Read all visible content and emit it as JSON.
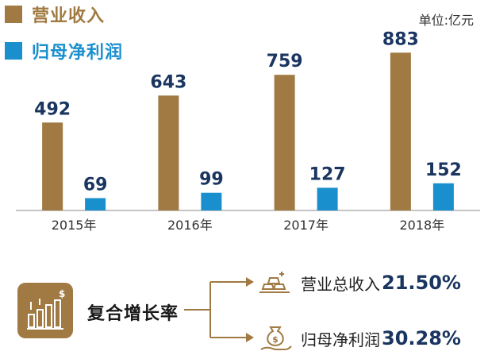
{
  "legend": [
    {
      "label": "营业收入",
      "color": "#a07a42"
    },
    {
      "label": "归母净利润",
      "color": "#1a8fce"
    }
  ],
  "unit": "单位:亿元",
  "chart_data": {
    "type": "bar",
    "categories": [
      "2015年",
      "2016年",
      "2017年",
      "2018年"
    ],
    "series": [
      {
        "name": "营业收入",
        "values": [
          492,
          643,
          759,
          883
        ],
        "color": "#a07a42"
      },
      {
        "name": "归母净利润",
        "values": [
          69,
          99,
          127,
          152
        ],
        "color": "#1a8fce"
      }
    ],
    "ylim": [
      0,
      1000
    ],
    "grid": false,
    "legend_position": "top-left"
  },
  "growth": {
    "title": "复合增长率",
    "icon": "bar-chart-growth-icon",
    "items": [
      {
        "label": "营业总收入",
        "value": "21.50%",
        "icon": "gold-bars-icon"
      },
      {
        "label": "归母净利润",
        "value": "30.28%",
        "icon": "money-bag-hand-icon"
      }
    ],
    "accent": "#a07a42"
  }
}
